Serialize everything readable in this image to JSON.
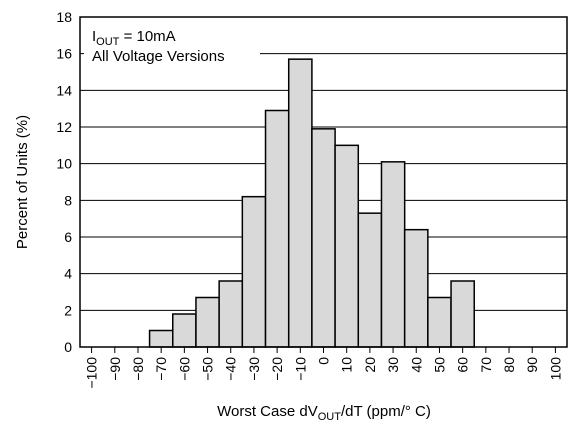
{
  "chart_data": {
    "type": "bar",
    "categories": [
      "−100",
      "−90",
      "−80",
      "−70",
      "−60",
      "−50",
      "−40",
      "−30",
      "−20",
      "−10",
      "0",
      "10",
      "20",
      "30",
      "40",
      "50",
      "60",
      "70",
      "80",
      "90",
      "100"
    ],
    "values": [
      0,
      0,
      0,
      0.9,
      1.8,
      2.7,
      3.6,
      8.2,
      12.9,
      15.7,
      11.9,
      11.0,
      7.3,
      10.1,
      6.4,
      2.7,
      3.6,
      0,
      0,
      0,
      0
    ],
    "ylabel": "Percent of Units (%)",
    "xlabel_parts": {
      "pre": "Worst Case dV",
      "sub": "OUT",
      "post": "/dT (ppm/° C)"
    },
    "ylim": [
      0,
      18
    ],
    "yticks": [
      0,
      2,
      4,
      6,
      8,
      10,
      12,
      14,
      16,
      18
    ],
    "grid": true,
    "bar_fill": "#d9d9d9",
    "bar_stroke": "#000000",
    "annotation": {
      "line1_pre": "I",
      "line1_sub": "OUT",
      "line1_post": " = 10mA",
      "line2": "All Voltage Versions"
    }
  }
}
